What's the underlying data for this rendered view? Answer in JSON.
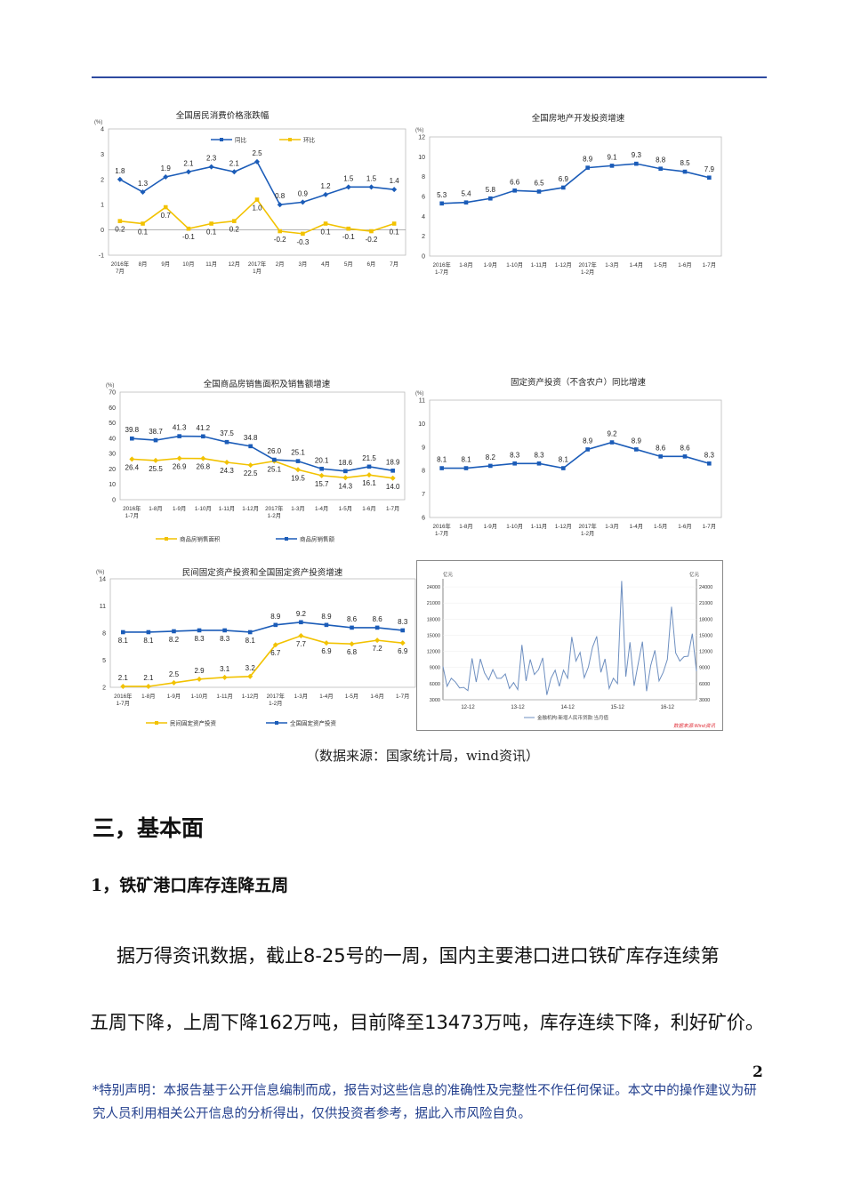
{
  "colors": {
    "blue": "#1b5cb8",
    "yellow": "#f2c200",
    "header_line": "#2e4aa0",
    "disclaimer": "#24408e",
    "wind_line": "#6e8fc0",
    "wind_source": "#e0303a"
  },
  "chart_data": [
    {
      "type": "line",
      "title": "全国居民消费价格涨跌幅",
      "unit": "(%)",
      "categories": [
        "2016年\n7月",
        "8月",
        "9月",
        "10月",
        "11月",
        "12月",
        "2017年\n1月",
        "2月",
        "3月",
        "4月",
        "5月",
        "6月",
        "7月"
      ],
      "ylim": [
        -1,
        4
      ],
      "yticks": [
        -1,
        0,
        1,
        2,
        3,
        4
      ],
      "legend": "top-inside",
      "series": [
        {
          "name": "同比",
          "color": "#1b5cb8",
          "marker": "diamond",
          "values": [
            1.8,
            1.3,
            1.9,
            2.1,
            2.3,
            2.1,
            2.5,
            0.8,
            0.9,
            1.2,
            1.5,
            1.5,
            1.4
          ],
          "plot_values": [
            2.0,
            1.5,
            2.1,
            2.3,
            2.5,
            2.3,
            2.7,
            1.0,
            1.1,
            1.4,
            1.7,
            1.7,
            1.6
          ]
        },
        {
          "name": "环比",
          "color": "#f2c200",
          "marker": "square",
          "values": [
            0.2,
            0.1,
            0.7,
            -0.1,
            0.1,
            0.2,
            1.0,
            -0.2,
            -0.3,
            0.1,
            -0.1,
            -0.2,
            0.1
          ],
          "plot_values": [
            0.35,
            0.25,
            0.9,
            0.05,
            0.25,
            0.35,
            1.2,
            -0.05,
            -0.15,
            0.25,
            0.05,
            -0.05,
            0.25
          ]
        }
      ]
    },
    {
      "type": "line",
      "title": "全国房地产开发投资增速",
      "unit": "(%)",
      "categories": [
        "2016年\n1-7月",
        "1-8月",
        "1-9月",
        "1-10月",
        "1-11月",
        "1-12月",
        "2017年\n1-2月",
        "1-3月",
        "1-4月",
        "1-5月",
        "1-6月",
        "1-7月"
      ],
      "ylim": [
        0,
        12
      ],
      "yticks": [
        0,
        2,
        4,
        6,
        8,
        10,
        12
      ],
      "series": [
        {
          "color": "#1b5cb8",
          "marker": "square",
          "values": [
            5.3,
            5.4,
            5.8,
            6.6,
            6.5,
            6.9,
            8.9,
            9.1,
            9.3,
            8.8,
            8.5,
            7.9
          ]
        }
      ]
    },
    {
      "type": "line",
      "title": "全国商品房销售面积及销售额增速",
      "unit": "(%)",
      "categories": [
        "2016年\n1-7月",
        "1-8月",
        "1-9月",
        "1-10月",
        "1-11月",
        "1-12月",
        "2017年\n1-2月",
        "1-3月",
        "1-4月",
        "1-5月",
        "1-6月",
        "1-7月"
      ],
      "ylim": [
        0,
        70
      ],
      "yticks": [
        0,
        10,
        20,
        30,
        40,
        50,
        60,
        70
      ],
      "legend": "bottom",
      "series": [
        {
          "name": "商品房销售面积",
          "color": "#f2c200",
          "marker": "diamond",
          "values": [
            26.4,
            25.5,
            26.9,
            26.8,
            24.3,
            22.5,
            25.1,
            19.5,
            15.7,
            14.3,
            16.1,
            14.0
          ]
        },
        {
          "name": "商品房销售额",
          "color": "#1b5cb8",
          "marker": "square",
          "values": [
            39.8,
            38.7,
            41.3,
            41.2,
            37.5,
            34.8,
            26.0,
            25.1,
            20.1,
            18.6,
            21.5,
            18.9
          ]
        }
      ]
    },
    {
      "type": "line",
      "title": "固定资产投资（不含农户）同比增速",
      "unit": "(%)",
      "categories": [
        "2016年\n1-7月",
        "1-8月",
        "1-9月",
        "1-10月",
        "1-11月",
        "1-12月",
        "2017年\n1-2月",
        "1-3月",
        "1-4月",
        "1-5月",
        "1-6月",
        "1-7月"
      ],
      "ylim": [
        6,
        11
      ],
      "yticks": [
        6,
        7,
        8,
        9,
        10,
        11
      ],
      "series": [
        {
          "color": "#1b5cb8",
          "marker": "square",
          "values": [
            8.1,
            8.1,
            8.2,
            8.3,
            8.3,
            8.1,
            8.9,
            9.2,
            8.9,
            8.6,
            8.6,
            8.3
          ]
        }
      ]
    },
    {
      "type": "line",
      "title": "民间固定资产投资和全国固定资产投资增速",
      "unit": "(%)",
      "categories": [
        "2016年\n1-7月",
        "1-8月",
        "1-9月",
        "1-10月",
        "1-11月",
        "1-12月",
        "2017年\n1-2月",
        "1-3月",
        "1-4月",
        "1-5月",
        "1-6月",
        "1-7月"
      ],
      "ylim": [
        2,
        14
      ],
      "yticks": [
        2,
        5,
        8,
        11,
        14
      ],
      "legend": "bottom",
      "series": [
        {
          "name": "民间固定资产投资",
          "color": "#f2c200",
          "marker": "diamond",
          "values": [
            2.1,
            2.1,
            2.5,
            2.9,
            3.1,
            3.2,
            6.7,
            7.7,
            6.9,
            6.8,
            7.2,
            6.9
          ]
        },
        {
          "name": "全国固定资产投资",
          "color": "#1b5cb8",
          "marker": "square",
          "values": [
            8.1,
            8.1,
            8.2,
            8.3,
            8.3,
            8.1,
            8.9,
            9.2,
            8.9,
            8.6,
            8.6,
            8.3
          ]
        }
      ]
    },
    {
      "type": "line",
      "unit_left": "亿元",
      "unit_right": "亿元",
      "ylim": [
        3000,
        25500
      ],
      "yticks": [
        3000,
        6000,
        9000,
        12000,
        15000,
        18000,
        21000,
        24000
      ],
      "xtick_labels": [
        "12-12",
        "13-12",
        "14-12",
        "15-12",
        "16-12"
      ],
      "xtick_index": [
        6,
        18,
        30,
        42,
        54
      ],
      "legend": "bottom",
      "source": "数据来源:Wind资讯",
      "series": [
        {
          "name": "金融机构:新增人民币贷款:当月值",
          "color": "#6e8fc0",
          "values": [
            9200,
            5500,
            7000,
            6300,
            5200,
            5300,
            4700,
            10700,
            6300,
            10600,
            8000,
            6700,
            8600,
            7000,
            7000,
            7800,
            5100,
            6200,
            4900,
            13200,
            6500,
            10500,
            7700,
            8600,
            10800,
            3900,
            7000,
            8500,
            5500,
            8500,
            7000,
            14700,
            10200,
            11800,
            7100,
            9100,
            12800,
            14800,
            8100,
            10600,
            5100,
            7000,
            6000,
            25100,
            7300,
            13700,
            5600,
            9800,
            13800,
            4600,
            9400,
            12200,
            6500,
            8100,
            10500,
            20300,
            11700,
            10200,
            11000,
            11100,
            15300,
            8300
          ]
        }
      ]
    }
  ],
  "caption": "（数据来源：国家统计局，wind资讯）",
  "section_heading": "三，基本面",
  "subheading": "1，铁矿港口库存连降五周",
  "paragraph": {
    "line1": "据万得资讯数据，截止8-25号的一周，国内主要港口进口铁矿库存连续第",
    "line2": "五周下降，上周下降162万吨，目前降至13473万吨，库存连续下降，利好矿价。"
  },
  "page_number": "2",
  "disclaimer": "*特别声明：本报告基于公开信息编制而成，报告对这些信息的准确性及完整性不作任何保证。本文中的操作建议为研究人员利用相关公开信息的分析得出，仅供投资者参考，据此入市风险自负。"
}
